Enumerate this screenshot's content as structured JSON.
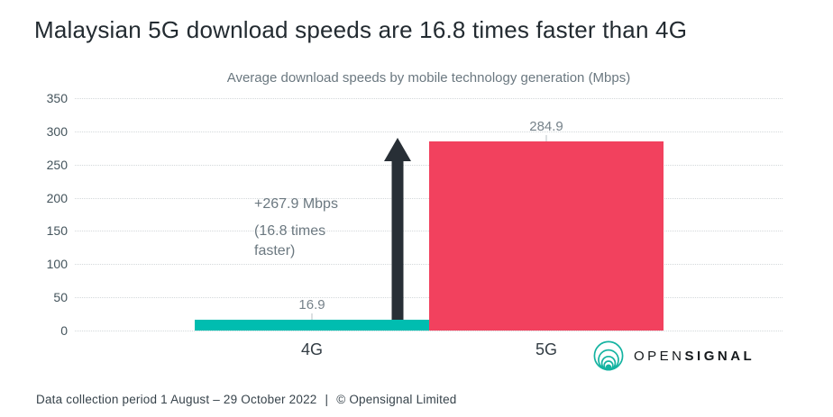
{
  "header": {
    "title": "Malaysian 5G download speeds are 16.8 times faster than 4G"
  },
  "chart_data": {
    "type": "bar",
    "title": "Average download speeds by mobile technology generation (Mbps)",
    "categories": [
      "4G",
      "5G"
    ],
    "values": [
      16.9,
      284.9
    ],
    "value_labels": [
      "16.9",
      "284.9"
    ],
    "bar_colors": [
      "#00BDB0",
      "#F2415E"
    ],
    "xlabel": "",
    "ylabel": "",
    "ylim": [
      0,
      350
    ],
    "yticks": [
      0,
      50,
      100,
      150,
      200,
      250,
      300,
      350
    ],
    "grid": "horizontal-dotted",
    "legend": "none",
    "annotation": {
      "line1": "+267.9 Mbps",
      "line2": "(16.8 times faster)",
      "arrow_color": "#282F36",
      "arrow_icon": "up-arrow"
    }
  },
  "footer": {
    "period": "Data collection period 1 August – 29 October 2022",
    "separator": "|",
    "copyright": "© Opensignal Limited"
  },
  "logo": {
    "prefix": "OPEN",
    "suffix": "SIGNAL",
    "icon_color": "#14B3A1"
  }
}
